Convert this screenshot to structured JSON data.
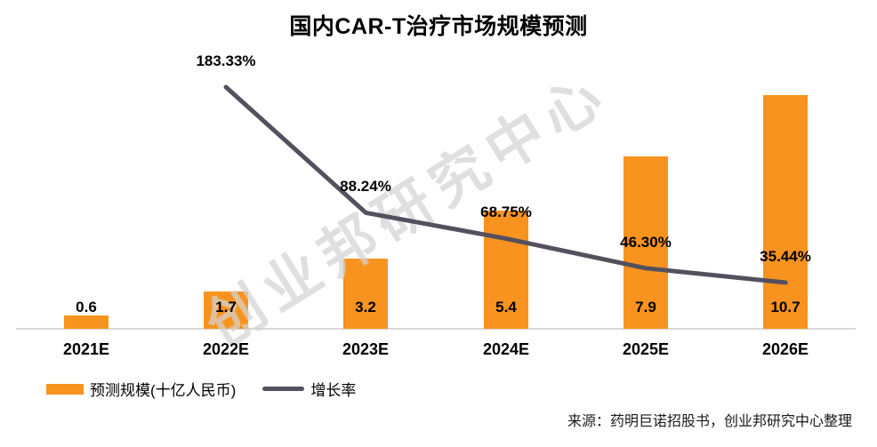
{
  "title": "国内CAR-T治疗市场规模预测",
  "watermark": "创业邦研究中心",
  "source": "来源：药明巨诺招股书，创业邦研究中心整理",
  "colors": {
    "bar": "#F8931F",
    "line": "#54505E",
    "axis": "#D9D9D9",
    "text": "#000000",
    "watermark": "#D4D4D4"
  },
  "legend": [
    {
      "label": "预测规模(十亿人民币)",
      "type": "bar",
      "color": "#F8931F"
    },
    {
      "label": "增长率",
      "type": "line",
      "color": "#54505E"
    }
  ],
  "chart_data": {
    "type": "bar",
    "title": "国内CAR-T治疗市场规模预测",
    "categories": [
      "2021E",
      "2022E",
      "2023E",
      "2024E",
      "2025E",
      "2026E"
    ],
    "series": [
      {
        "name": "预测规模(十亿人民币)",
        "type": "bar",
        "values": [
          0.6,
          1.7,
          3.2,
          5.4,
          7.9,
          10.7
        ],
        "labels": [
          "0.6",
          "1.7",
          "3.2",
          "5.4",
          "7.9",
          "10.7"
        ],
        "color": "#F8931F",
        "axis": "primary",
        "unit": "十亿人民币"
      },
      {
        "name": "增长率",
        "type": "line",
        "values": [
          null,
          183.33,
          88.24,
          68.75,
          46.3,
          35.44
        ],
        "labels": [
          "",
          "183.33%",
          "88.24%",
          "68.75%",
          "46.30%",
          "35.44%"
        ],
        "color": "#54505E",
        "axis": "secondary",
        "unit": "%"
      }
    ],
    "xlabel": "",
    "ylabel": "",
    "grid": false,
    "axes_visible": false,
    "legend_position": "bottom-left",
    "ylim_primary": [
      0,
      12
    ],
    "ylim_secondary": [
      0,
      200
    ]
  }
}
